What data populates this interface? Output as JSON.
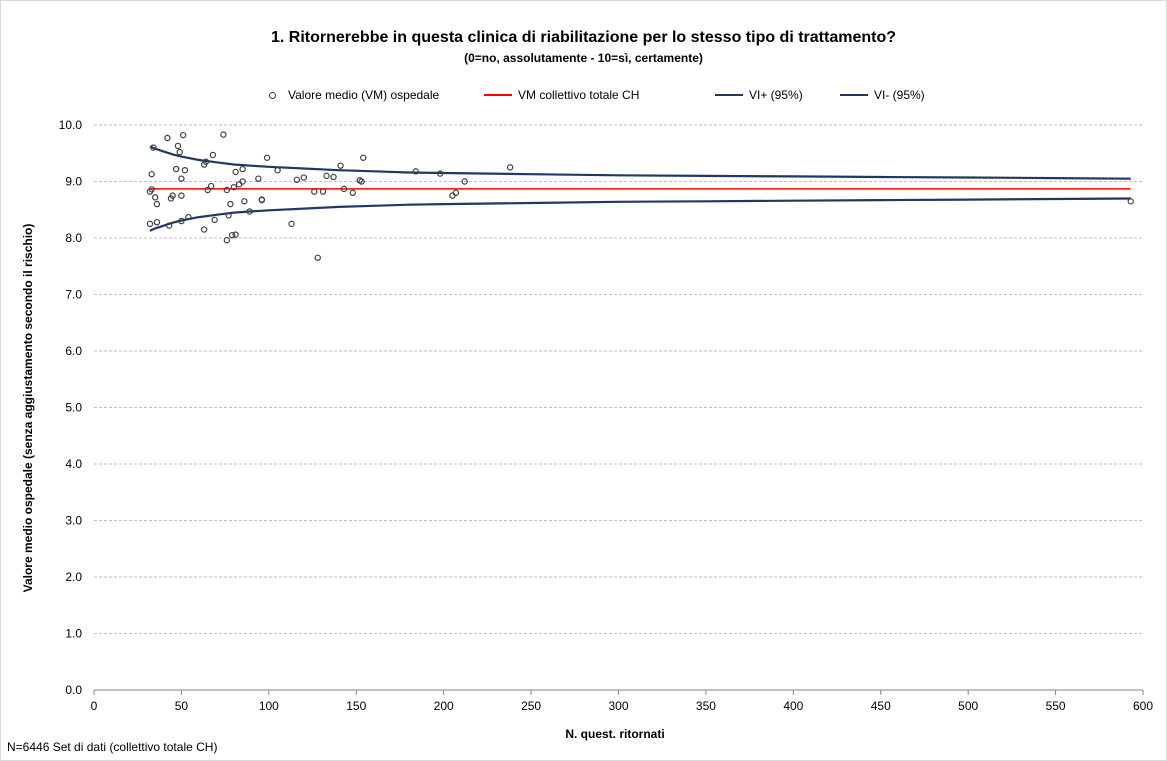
{
  "chart_data": {
    "type": "scatter",
    "title": "1. Ritornerebbe in questa clinica di riabilitazione per lo stesso tipo di trattamento?",
    "subtitle": "(0=no, assolutamente - 10=sì, certamente)",
    "xlabel": "N. quest. ritornati",
    "ylabel": "Valore medio ospedale (senza aggiustamento secondo il rischio)",
    "xlim": [
      0,
      600
    ],
    "ylim": [
      0,
      10
    ],
    "x_ticks": [
      "0",
      "50",
      "100",
      "150",
      "200",
      "250",
      "300",
      "350",
      "400",
      "450",
      "500",
      "550",
      "600"
    ],
    "y_ticks": [
      "0.0",
      "1.0",
      "2.0",
      "3.0",
      "4.0",
      "5.0",
      "6.0",
      "7.0",
      "8.0",
      "9.0",
      "10.0"
    ],
    "grid": "horizontal dashed",
    "legend_position": "top",
    "legend": [
      {
        "name": "Valore medio (VM) ospedale",
        "kind": "marker",
        "color": "#404040"
      },
      {
        "name": "VM collettivo totale CH",
        "kind": "line",
        "color": "#ff0000"
      },
      {
        "name": "VI+ (95%)",
        "kind": "line",
        "color": "#1f3864"
      },
      {
        "name": "VI- (95%)",
        "kind": "line",
        "color": "#1f3864"
      }
    ],
    "mean_value": 8.87,
    "confidence_band": {
      "x": [
        32,
        35,
        40,
        45,
        50,
        60,
        70,
        80,
        90,
        100,
        120,
        140,
        160,
        180,
        200,
        250,
        300,
        350,
        400,
        450,
        500,
        550,
        593
      ],
      "upper": [
        9.62,
        9.58,
        9.53,
        9.48,
        9.44,
        9.38,
        9.34,
        9.3,
        9.28,
        9.26,
        9.23,
        9.2,
        9.18,
        9.16,
        9.15,
        9.13,
        9.11,
        9.1,
        9.09,
        9.08,
        9.07,
        9.06,
        9.05
      ],
      "lower": [
        8.13,
        8.17,
        8.22,
        8.27,
        8.31,
        8.37,
        8.41,
        8.45,
        8.47,
        8.49,
        8.52,
        8.55,
        8.57,
        8.59,
        8.6,
        8.62,
        8.64,
        8.65,
        8.66,
        8.67,
        8.68,
        8.69,
        8.7
      ]
    },
    "points": [
      [
        32,
        8.25
      ],
      [
        32,
        8.82
      ],
      [
        33,
        9.13
      ],
      [
        33,
        8.86
      ],
      [
        34,
        9.6
      ],
      [
        35,
        8.72
      ],
      [
        36,
        8.6
      ],
      [
        36,
        8.28
      ],
      [
        42,
        9.77
      ],
      [
        43,
        8.22
      ],
      [
        44,
        8.7
      ],
      [
        45,
        8.75
      ],
      [
        47,
        9.22
      ],
      [
        48,
        9.63
      ],
      [
        49,
        9.52
      ],
      [
        50,
        9.05
      ],
      [
        50,
        8.75
      ],
      [
        50,
        8.3
      ],
      [
        51,
        9.82
      ],
      [
        52,
        9.2
      ],
      [
        54,
        8.37
      ],
      [
        63,
        9.3
      ],
      [
        63,
        8.15
      ],
      [
        64,
        9.35
      ],
      [
        65,
        8.85
      ],
      [
        67,
        8.92
      ],
      [
        68,
        9.47
      ],
      [
        69,
        8.32
      ],
      [
        74,
        9.83
      ],
      [
        76,
        8.85
      ],
      [
        76,
        7.96
      ],
      [
        77,
        8.4
      ],
      [
        78,
        8.6
      ],
      [
        79,
        8.05
      ],
      [
        80,
        8.9
      ],
      [
        81,
        9.17
      ],
      [
        81,
        8.06
      ],
      [
        83,
        8.95
      ],
      [
        85,
        9.22
      ],
      [
        85,
        9.0
      ],
      [
        86,
        8.65
      ],
      [
        89,
        8.47
      ],
      [
        94,
        9.05
      ],
      [
        96,
        8.68
      ],
      [
        96,
        8.67
      ],
      [
        99,
        9.42
      ],
      [
        105,
        9.2
      ],
      [
        113,
        8.25
      ],
      [
        116,
        9.03
      ],
      [
        120,
        9.07
      ],
      [
        126,
        8.82
      ],
      [
        128,
        7.65
      ],
      [
        131,
        8.82
      ],
      [
        133,
        9.1
      ],
      [
        137,
        9.08
      ],
      [
        141,
        9.28
      ],
      [
        143,
        8.87
      ],
      [
        148,
        8.8
      ],
      [
        152,
        9.02
      ],
      [
        153,
        9.0
      ],
      [
        154,
        9.42
      ],
      [
        184,
        9.18
      ],
      [
        198,
        9.14
      ],
      [
        205,
        8.75
      ],
      [
        207,
        8.8
      ],
      [
        212,
        9.0
      ],
      [
        238,
        9.25
      ],
      [
        593,
        8.65
      ]
    ]
  },
  "footnote": "N=6446 Set di dati (collettivo totale CH)",
  "colors": {
    "mean": "#ff0000",
    "band": "#1f3864",
    "marker": "#404040",
    "grid": "#bfbfbf",
    "axis": "#868686"
  }
}
